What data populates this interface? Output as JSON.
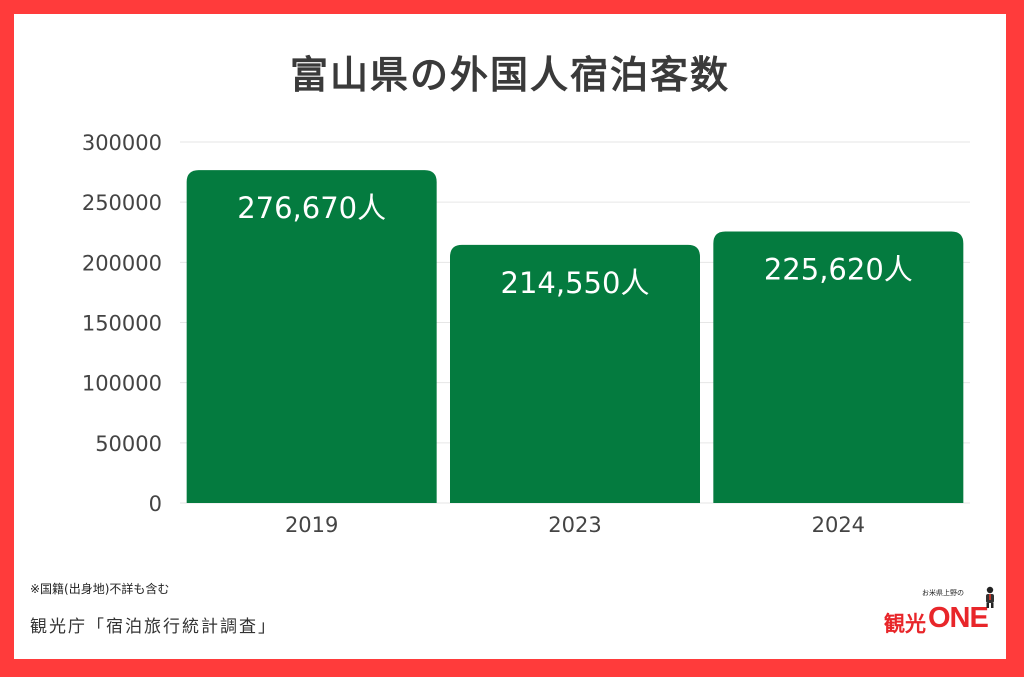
{
  "chart_data": {
    "type": "bar",
    "title": "富山県の外国人宿泊客数",
    "categories": [
      "2019",
      "2023",
      "2024"
    ],
    "values": [
      276670,
      214550,
      225620
    ],
    "data_labels": [
      "276,670人",
      "214,550人",
      "225,620人"
    ],
    "ylim": [
      0,
      300000
    ],
    "yticks": [
      "0",
      "50000",
      "100000",
      "150000",
      "200000",
      "250000",
      "300000"
    ],
    "grid": true,
    "legend": "none",
    "bar_color": "#047b3f"
  },
  "footer": {
    "note": "※国籍(出身地)不詳も含む",
    "source": "観光庁「宿泊旅行統計調査」"
  },
  "logo": {
    "small_text": "お米県上野の",
    "kanji": "観光",
    "brand": "ONE"
  },
  "colors": {
    "border": "#ff3b3b",
    "bar": "#047b3f",
    "text": "#3a3a3a",
    "logo": "#e8262a"
  }
}
